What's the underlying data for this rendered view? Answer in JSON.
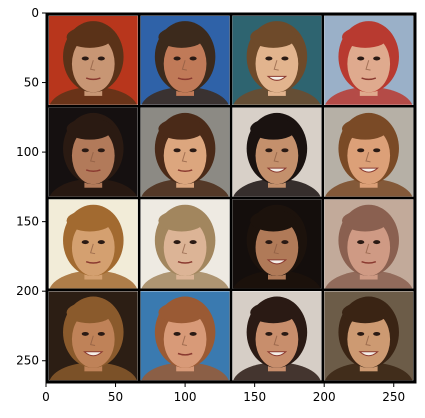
{
  "chart_data": {
    "type": "image_grid",
    "title": "",
    "xlabel": "",
    "ylabel": "",
    "xlim": [
      0,
      266
    ],
    "ylim": [
      266,
      0
    ],
    "grid_rows": 4,
    "grid_cols": 4,
    "tile_size": 64,
    "tile_padding": 2,
    "xticks": [
      0,
      50,
      100,
      150,
      200,
      250
    ],
    "yticks": [
      0,
      50,
      100,
      150,
      200,
      250
    ],
    "grid_lines_color": "#000000",
    "tiles": [
      {
        "row": 0,
        "col": 0,
        "desc": "face-sample",
        "bg": "#b8361c",
        "skin": "#c89674",
        "hair": "#5a3218",
        "smile": false
      },
      {
        "row": 0,
        "col": 1,
        "desc": "face-sample",
        "bg": "#2f62a8",
        "skin": "#c07a58",
        "hair": "#3c2a1c",
        "smile": false
      },
      {
        "row": 0,
        "col": 2,
        "desc": "face-sample",
        "bg": "#2e6470",
        "skin": "#e2b48e",
        "hair": "#6e4a2a",
        "smile": true
      },
      {
        "row": 0,
        "col": 3,
        "desc": "face-sample",
        "bg": "#9ab0c8",
        "skin": "#dfaa8e",
        "hair": "#b83a30",
        "smile": false
      },
      {
        "row": 1,
        "col": 0,
        "desc": "face-sample",
        "bg": "#151010",
        "skin": "#b27a5a",
        "hair": "#2a1a12",
        "smile": false
      },
      {
        "row": 1,
        "col": 1,
        "desc": "face-sample",
        "bg": "#8c8a84",
        "skin": "#dca67e",
        "hair": "#4a2a18",
        "smile": false
      },
      {
        "row": 1,
        "col": 2,
        "desc": "face-sample",
        "bg": "#d8d0c8",
        "skin": "#c4906c",
        "hair": "#1a1210",
        "smile": true
      },
      {
        "row": 1,
        "col": 3,
        "desc": "face-sample",
        "bg": "#b6b0a6",
        "skin": "#dca078",
        "hair": "#7a4a26",
        "smile": true
      },
      {
        "row": 2,
        "col": 0,
        "desc": "face-sample",
        "bg": "#f2ecd8",
        "skin": "#d4a070",
        "hair": "#a26a30",
        "smile": false
      },
      {
        "row": 2,
        "col": 1,
        "desc": "face-sample",
        "bg": "#eeeae2",
        "skin": "#dcb496",
        "hair": "#a2865e",
        "smile": false
      },
      {
        "row": 2,
        "col": 2,
        "desc": "face-sample",
        "bg": "#140e0c",
        "skin": "#b07a58",
        "hair": "#1c120c",
        "smile": true
      },
      {
        "row": 2,
        "col": 3,
        "desc": "face-sample",
        "bg": "#c2aa9a",
        "skin": "#cf9a84",
        "hair": "#8a6050",
        "smile": false
      },
      {
        "row": 3,
        "col": 0,
        "desc": "face-sample",
        "bg": "#2c1e14",
        "skin": "#bf8258",
        "hair": "#8a5a2c",
        "smile": true
      },
      {
        "row": 3,
        "col": 1,
        "desc": "face-sample",
        "bg": "#3a7ab0",
        "skin": "#d89a78",
        "hair": "#9a5a34",
        "smile": false
      },
      {
        "row": 3,
        "col": 2,
        "desc": "face-sample",
        "bg": "#d6cec6",
        "skin": "#c88e6c",
        "hair": "#2a1a14",
        "smile": true
      },
      {
        "row": 3,
        "col": 3,
        "desc": "face-sample",
        "bg": "#6c5c48",
        "skin": "#cd9a72",
        "hair": "#3a2414",
        "smile": true
      }
    ]
  }
}
